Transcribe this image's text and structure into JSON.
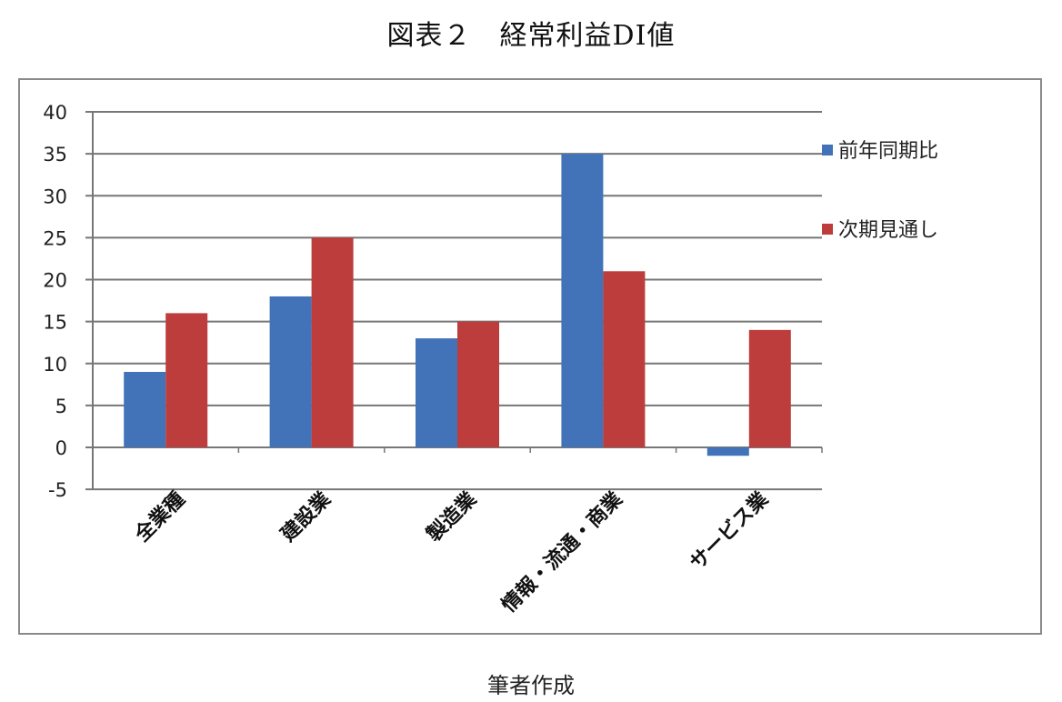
{
  "title": "図表２　経常利益DI値",
  "caption": "筆者作成",
  "chart_data": {
    "type": "bar",
    "title": "図表２　経常利益DI値",
    "xlabel": "",
    "ylabel": "",
    "categories": [
      "全業種",
      "建設業",
      "製造業",
      "情報・流通・商業",
      "サービス業"
    ],
    "series": [
      {
        "name": "前年同期比",
        "color": "#4273b8",
        "values": [
          9,
          18,
          13,
          35,
          -1
        ]
      },
      {
        "name": "次期見通し",
        "color": "#bd3c3c",
        "values": [
          16,
          25,
          15,
          21,
          14
        ]
      }
    ],
    "ylim": [
      -5,
      40
    ],
    "yticks": [
      40,
      35,
      30,
      25,
      20,
      15,
      10,
      5,
      0,
      -5
    ],
    "grid": true,
    "legend_position": "right"
  }
}
